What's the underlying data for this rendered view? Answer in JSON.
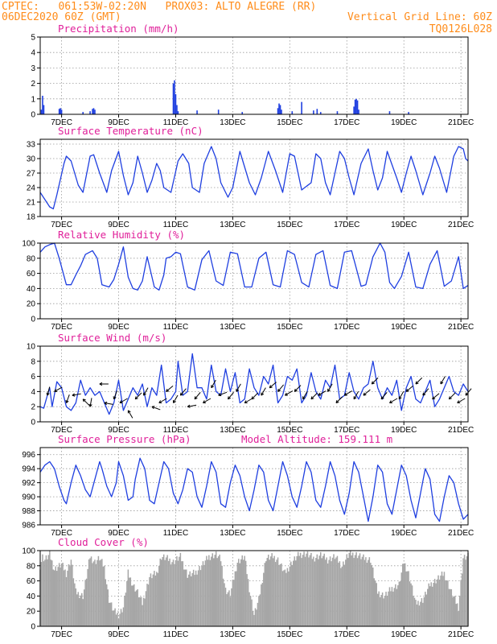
{
  "header": {
    "line1_left": "CPTEC:   061:53W-02:20N   PROX03: ALTO ALEGRE (RR)",
    "line2_left": "06DEC2020 60Z (GMT)",
    "line2_right": "Vertical Grid Line: 60Z",
    "line3_right": "TQ0126L028"
  },
  "colors": {
    "header": "#ff8c1a",
    "title": "#e0209a",
    "series": "#1f3fe0",
    "cloud": "#a6a6a6",
    "arrow": "#000000"
  },
  "x_axis": {
    "range": [
      0,
      360
    ],
    "tick_hours": [
      18,
      66,
      114,
      162,
      210,
      258,
      306,
      354
    ],
    "tick_labels": [
      "7DEC",
      "9DEC",
      "11DEC",
      "13DEC",
      "15DEC",
      "17DEC",
      "19DEC",
      "21DEC"
    ]
  },
  "chart_data": [
    {
      "id": "precip",
      "type": "bar",
      "title": "Precipitation (mm/h)",
      "ylim": [
        0,
        5
      ],
      "yticks": [
        0,
        1,
        2,
        3,
        4,
        5
      ],
      "x": [
        1,
        2,
        3,
        16,
        17,
        18,
        36,
        42,
        44,
        45,
        46,
        112,
        113,
        114,
        115,
        116,
        132,
        150,
        170,
        200,
        201,
        202,
        203,
        212,
        220,
        230,
        233,
        236,
        250,
        264,
        265,
        266,
        267,
        268,
        294,
        310
      ],
      "values": [
        0.3,
        1.2,
        0.6,
        0.35,
        0.4,
        0.3,
        0.15,
        0.2,
        0.35,
        0.4,
        0.3,
        2.0,
        2.2,
        1.3,
        0.6,
        0.2,
        0.25,
        0.3,
        0.15,
        0.4,
        0.7,
        0.6,
        0.3,
        0.2,
        0.8,
        0.25,
        0.35,
        0.15,
        0.2,
        0.5,
        0.95,
        1.0,
        0.9,
        0.3,
        0.2,
        0.15
      ]
    },
    {
      "id": "temp",
      "type": "line",
      "title": "Surface Temperature (nC)",
      "ylim": [
        18,
        34
      ],
      "yticks": [
        18,
        21,
        24,
        27,
        30,
        33
      ],
      "x": [
        0,
        4,
        8,
        11,
        14,
        20,
        22,
        26,
        32,
        36,
        42,
        45,
        50,
        56,
        60,
        66,
        70,
        74,
        78,
        82,
        86,
        90,
        94,
        98,
        101,
        104,
        110,
        116,
        120,
        125,
        128,
        134,
        138,
        144,
        148,
        152,
        158,
        162,
        168,
        176,
        181,
        186,
        192,
        198,
        204,
        210,
        214,
        220,
        228,
        232,
        236,
        240,
        244,
        252,
        256,
        260,
        264,
        270,
        276,
        280,
        284,
        288,
        292,
        300,
        304,
        308,
        312,
        316,
        322,
        328,
        332,
        336,
        342,
        348,
        352,
        356,
        358,
        360
      ],
      "values": [
        23.0,
        21.5,
        20.0,
        19.6,
        22.5,
        29.0,
        30.5,
        29.5,
        24.5,
        23.0,
        30.5,
        30.8,
        27.0,
        23.0,
        27.5,
        31.5,
        26.5,
        22.5,
        25.0,
        30.5,
        27.0,
        23.0,
        25.5,
        29.0,
        27.5,
        24.0,
        23.0,
        29.5,
        31.0,
        29.0,
        24.0,
        23.0,
        29.0,
        32.5,
        30.0,
        25.0,
        22.0,
        24.0,
        31.5,
        25.0,
        22.5,
        26.0,
        31.5,
        27.5,
        23.0,
        31.0,
        30.5,
        23.5,
        25.0,
        31.0,
        30.0,
        25.0,
        22.5,
        31.5,
        30.0,
        26.0,
        22.5,
        29.0,
        32.0,
        27.5,
        23.5,
        26.0,
        31.5,
        26.0,
        23.0,
        27.0,
        30.5,
        27.5,
        22.5,
        27.0,
        30.5,
        28.0,
        23.0,
        30.5,
        32.5,
        32.0,
        30.0,
        29.5
      ]
    },
    {
      "id": "rh",
      "type": "line",
      "title": "Relative Humidity (%)",
      "ylim": [
        0,
        100
      ],
      "yticks": [
        0,
        20,
        40,
        60,
        80,
        100
      ],
      "x": [
        0,
        4,
        8,
        12,
        16,
        22,
        26,
        30,
        34,
        38,
        44,
        48,
        52,
        58,
        62,
        66,
        70,
        74,
        78,
        82,
        86,
        90,
        96,
        100,
        104,
        106,
        110,
        114,
        118,
        124,
        130,
        136,
        142,
        148,
        154,
        160,
        166,
        172,
        178,
        184,
        190,
        196,
        202,
        208,
        214,
        220,
        226,
        232,
        238,
        244,
        250,
        256,
        262,
        270,
        274,
        280,
        286,
        290,
        294,
        298,
        304,
        310,
        316,
        322,
        328,
        334,
        340,
        346,
        352,
        356,
        360
      ],
      "values": [
        88,
        95,
        98,
        100,
        80,
        45,
        45,
        58,
        70,
        85,
        90,
        80,
        45,
        42,
        52,
        72,
        95,
        55,
        40,
        38,
        50,
        82,
        42,
        38,
        58,
        80,
        82,
        88,
        86,
        42,
        38,
        78,
        90,
        50,
        44,
        88,
        86,
        42,
        42,
        80,
        88,
        45,
        42,
        90,
        85,
        48,
        42,
        85,
        90,
        44,
        40,
        88,
        90,
        43,
        45,
        82,
        100,
        88,
        48,
        40,
        56,
        88,
        42,
        40,
        72,
        90,
        43,
        50,
        82,
        40,
        44
      ]
    },
    {
      "id": "wind",
      "type": "line",
      "title": "Surface Wind (m/s)",
      "ylim": [
        0,
        10
      ],
      "yticks": [
        0,
        2,
        4,
        6,
        8,
        10
      ],
      "x": [
        0,
        3,
        6,
        8,
        10,
        14,
        18,
        22,
        26,
        30,
        34,
        38,
        42,
        46,
        50,
        54,
        58,
        62,
        66,
        70,
        74,
        78,
        82,
        86,
        90,
        94,
        98,
        102,
        106,
        110,
        114,
        116,
        120,
        124,
        128,
        132,
        136,
        140,
        144,
        148,
        152,
        156,
        160,
        164,
        168,
        172,
        176,
        180,
        184,
        188,
        192,
        196,
        200,
        204,
        208,
        212,
        216,
        220,
        224,
        228,
        232,
        236,
        240,
        244,
        248,
        252,
        256,
        260,
        264,
        268,
        272,
        276,
        280,
        284,
        288,
        292,
        296,
        300,
        304,
        308,
        312,
        316,
        320,
        324,
        328,
        332,
        336,
        340,
        344,
        348,
        352,
        356,
        360
      ],
      "values": [
        2.0,
        1.8,
        3.5,
        4.5,
        2.0,
        5.3,
        4.5,
        2.0,
        1.5,
        2.5,
        5.5,
        3.5,
        4.5,
        3.5,
        4.0,
        2.5,
        1.0,
        2.5,
        5.5,
        1.5,
        3.0,
        4.5,
        3.5,
        5.0,
        2.0,
        4.5,
        3.5,
        7.5,
        2.5,
        3.0,
        4.0,
        8.0,
        3.5,
        4.0,
        9.0,
        4.5,
        4.5,
        3.0,
        7.5,
        4.0,
        3.5,
        7.0,
        4.0,
        6.5,
        2.5,
        3.0,
        7.0,
        4.5,
        3.5,
        6.0,
        5.0,
        7.5,
        2.5,
        3.5,
        6.0,
        5.5,
        7.0,
        2.5,
        3.5,
        6.5,
        4.0,
        3.0,
        5.5,
        4.5,
        7.5,
        3.0,
        3.5,
        6.5,
        4.0,
        3.0,
        4.5,
        5.0,
        8.0,
        4.5,
        3.0,
        4.5,
        3.5,
        5.5,
        1.5,
        4.5,
        6.0,
        3.0,
        2.5,
        4.0,
        5.5,
        2.0,
        3.0,
        4.5,
        6.0,
        4.0,
        3.5,
        5.0,
        4.0
      ]
    },
    {
      "id": "pressure",
      "type": "line",
      "title": "Surface Pressure (hPa)",
      "title_right": "Model Altitude: 159.111 m",
      "ylim": [
        986,
        997
      ],
      "yticks": [
        986,
        988,
        990,
        992,
        994,
        996
      ],
      "x": [
        0,
        4,
        8,
        12,
        16,
        20,
        22,
        26,
        30,
        34,
        38,
        42,
        46,
        50,
        52,
        56,
        60,
        64,
        66,
        70,
        74,
        78,
        80,
        84,
        88,
        92,
        96,
        100,
        104,
        108,
        112,
        116,
        120,
        124,
        128,
        132,
        136,
        140,
        144,
        148,
        152,
        156,
        160,
        164,
        168,
        172,
        176,
        180,
        184,
        188,
        192,
        196,
        200,
        204,
        208,
        212,
        216,
        220,
        224,
        228,
        232,
        236,
        240,
        244,
        248,
        252,
        256,
        260,
        264,
        268,
        272,
        276,
        280,
        284,
        288,
        292,
        296,
        300,
        304,
        308,
        312,
        316,
        320,
        324,
        328,
        332,
        336,
        340,
        344,
        348,
        352,
        356,
        360
      ],
      "values": [
        993.5,
        994.5,
        995.0,
        994.0,
        991.5,
        989.5,
        989.0,
        992.0,
        994.5,
        993.0,
        991.0,
        990.0,
        992.5,
        995.0,
        994.0,
        991.5,
        990.0,
        992.0,
        995.0,
        993.0,
        989.5,
        990.0,
        992.5,
        995.5,
        994.0,
        989.5,
        989.0,
        992.0,
        995.0,
        994.0,
        990.5,
        989.0,
        991.0,
        994.0,
        993.5,
        990.0,
        988.5,
        991.5,
        995.0,
        993.5,
        989.0,
        988.5,
        992.0,
        994.5,
        993.0,
        990.0,
        988.0,
        991.0,
        994.5,
        993.5,
        989.5,
        988.0,
        991.5,
        995.0,
        993.0,
        990.0,
        988.5,
        991.5,
        995.0,
        993.5,
        989.5,
        988.5,
        991.5,
        995.0,
        993.0,
        989.5,
        987.5,
        990.5,
        995.0,
        993.5,
        990.0,
        986.5,
        990.0,
        994.5,
        993.5,
        989.0,
        987.5,
        991.0,
        994.5,
        993.0,
        989.5,
        987.0,
        990.5,
        994.0,
        992.5,
        987.5,
        986.5,
        990.0,
        993.0,
        992.0,
        989.0,
        986.8,
        987.5
      ]
    },
    {
      "id": "cloud",
      "type": "area",
      "title": "Cloud Cover (%)",
      "ylim": [
        0,
        100
      ],
      "yticks": [
        0,
        20,
        40,
        60,
        80,
        100
      ],
      "x": [
        0,
        2,
        4,
        8,
        12,
        18,
        22,
        26,
        30,
        36,
        42,
        46,
        50,
        54,
        58,
        62,
        66,
        70,
        74,
        78,
        82,
        86,
        92,
        98,
        102,
        106,
        112,
        118,
        124,
        130,
        136,
        142,
        148,
        152,
        156,
        160,
        166,
        172,
        176,
        180,
        184,
        190,
        196,
        200,
        206,
        212,
        218,
        224,
        230,
        236,
        242,
        248,
        254,
        260,
        266,
        272,
        278,
        284,
        290,
        296,
        302,
        306,
        310,
        316,
        322,
        328,
        334,
        340,
        346,
        352,
        356,
        360
      ],
      "values": [
        80,
        92,
        88,
        95,
        75,
        82,
        70,
        88,
        45,
        40,
        92,
        85,
        90,
        78,
        35,
        20,
        15,
        25,
        70,
        55,
        45,
        30,
        65,
        70,
        92,
        90,
        85,
        92,
        68,
        70,
        80,
        92,
        95,
        88,
        48,
        42,
        85,
        92,
        50,
        15,
        35,
        90,
        92,
        88,
        70,
        85,
        95,
        96,
        90,
        94,
        88,
        92,
        80,
        96,
        95,
        90,
        88,
        45,
        40,
        50,
        55,
        85,
        70,
        30,
        35,
        55,
        62,
        70,
        45,
        25,
        90,
        92
      ]
    }
  ],
  "wind_arrows": {
    "x": [
      6,
      12,
      22,
      27,
      36,
      42,
      50,
      54,
      62,
      67,
      74,
      80,
      87,
      94,
      100,
      106,
      112,
      118,
      124,
      130,
      137,
      144,
      150,
      158,
      165,
      172,
      178,
      186,
      193,
      200,
      206,
      214,
      221,
      228,
      234,
      242,
      249,
      256,
      264,
      272,
      279,
      287,
      294,
      302,
      308,
      316,
      322,
      330,
      337,
      344,
      351,
      358
    ],
    "speed": [
      3.5,
      4.0,
      2.5,
      3.5,
      3.0,
      2.0,
      5.0,
      2.5,
      3.0,
      2.5,
      1.5,
      3.0,
      3.5,
      2.0,
      2.5,
      4.0,
      2.5,
      3.5,
      2.0,
      3.0,
      2.5,
      4.5,
      3.5,
      3.0,
      4.0,
      2.5,
      3.0,
      3.5,
      4.5,
      4.0,
      3.5,
      4.0,
      3.0,
      3.0,
      3.5,
      4.0,
      2.5,
      3.5,
      3.0,
      3.5,
      5.0,
      3.0,
      2.5,
      3.0,
      4.0,
      5.0,
      3.5,
      3.0,
      5.0,
      3.0,
      2.5,
      3.5
    ],
    "direction_deg": [
      15,
      60,
      20,
      80,
      135,
      10,
      90,
      100,
      20,
      60,
      150,
      45,
      30,
      110,
      60,
      50,
      30,
      40,
      80,
      40,
      60,
      30,
      70,
      40,
      30,
      60,
      45,
      30,
      50,
      40,
      60,
      45,
      30,
      45,
      60,
      30,
      45,
      60,
      30,
      50,
      45,
      40,
      60,
      30,
      50,
      45,
      40,
      50,
      30,
      45,
      60,
      40
    ]
  }
}
